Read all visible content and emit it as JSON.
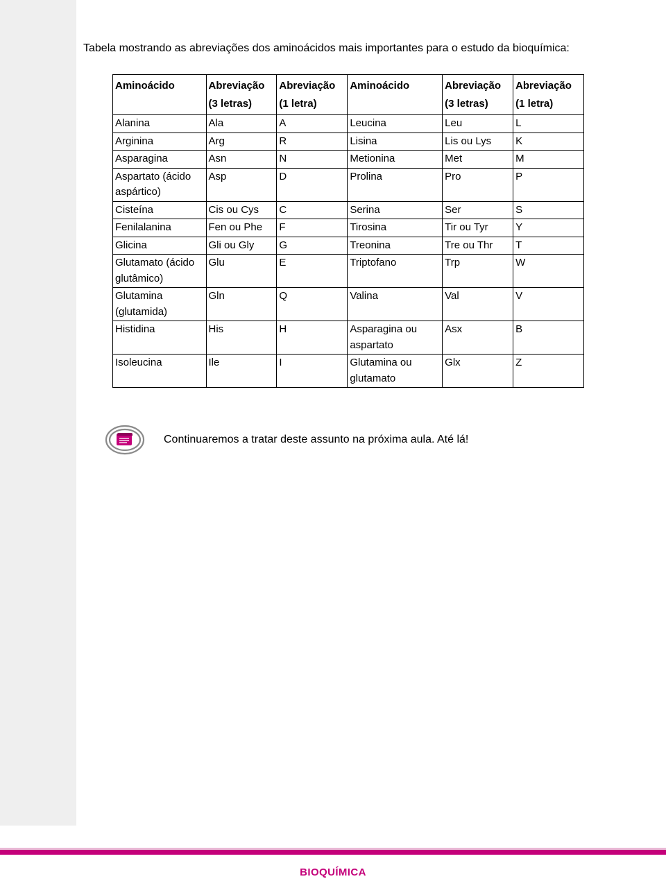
{
  "intro": "Tabela mostrando as abreviações dos aminoácidos mais importantes para o estudo da bioquímica:",
  "table": {
    "headers": {
      "c1": "Aminoácido",
      "c2a": "Abreviação",
      "c2b": "(3 letras)",
      "c3a": "Abreviação",
      "c3b": "(1 letra)",
      "c4": "Aminoácido",
      "c5a": "Abreviação",
      "c5b": "(3 letras)",
      "c6a": "Abreviação",
      "c6b": "(1 letra)"
    },
    "rows": [
      [
        "Alanina",
        "Ala",
        "A",
        "Leucina",
        "Leu",
        "L"
      ],
      [
        "Arginina",
        "Arg",
        "R",
        "Lisina",
        "Lis ou Lys",
        "K"
      ],
      [
        "Asparagina",
        "Asn",
        "N",
        "Metionina",
        "Met",
        "M"
      ],
      [
        "Aspartato (ácido aspártico)",
        "Asp",
        "D",
        "Prolina",
        "Pro",
        "P"
      ],
      [
        "Cisteína",
        "Cis ou Cys",
        "C",
        "Serina",
        "Ser",
        "S"
      ],
      [
        "Fenilalanina",
        "Fen ou Phe",
        "F",
        "Tirosina",
        "Tir ou Tyr",
        "Y"
      ],
      [
        "Glicina",
        "Gli ou Gly",
        "G",
        "Treonina",
        "Tre ou Thr",
        "T"
      ],
      [
        "Glutamato (ácido glutâmico)",
        "Glu",
        "E",
        "Triptofano",
        "Trp",
        "W"
      ],
      [
        "Glutamina (glutamida)",
        "Gln",
        "Q",
        "Valina",
        "Val",
        "V"
      ],
      [
        "Histidina",
        "His",
        "H",
        "Asparagina ou aspartato",
        "Asx",
        "B"
      ],
      [
        "Isoleucina",
        "Ile",
        "I",
        "Glutamina ou glutamato",
        "Glx",
        "Z"
      ]
    ]
  },
  "note": "Continuaremos a tratar deste assunto na próxima aula. Até lá!",
  "footer": "BIOQUÍMICA",
  "colors": {
    "accent": "#c4007a",
    "border": "#000000",
    "leftbg": "#efefef",
    "iconStroke": "#8a8a8a",
    "iconAccent": "#c4007a"
  }
}
